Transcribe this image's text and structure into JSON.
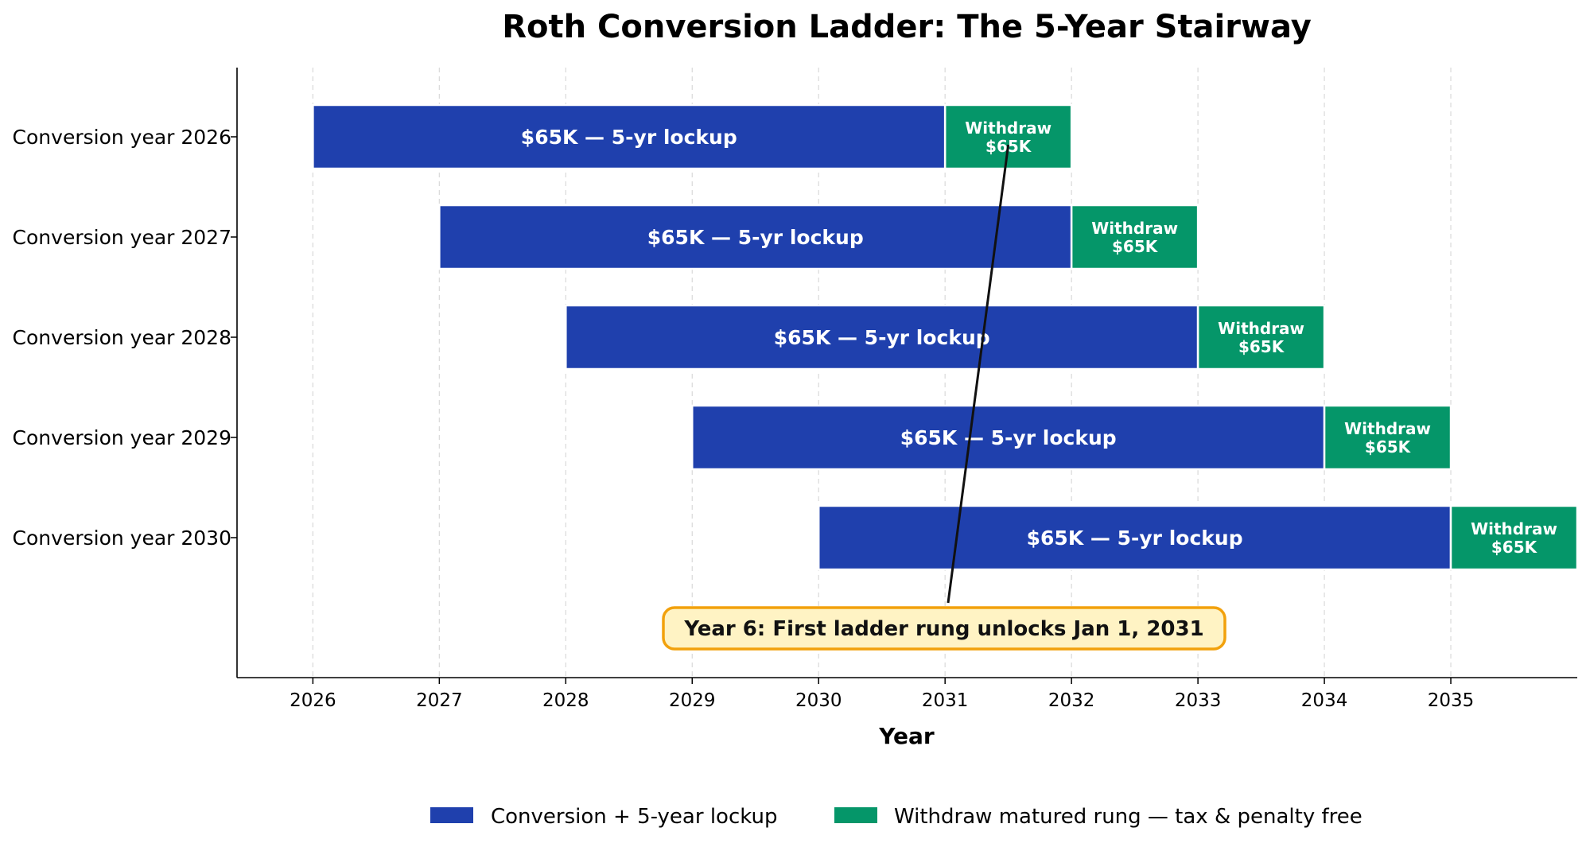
{
  "chart_data": {
    "type": "bar",
    "orientation": "horizontal-gantt",
    "title": "Roth Conversion Ladder: The 5-Year Stairway",
    "xlabel": "Year",
    "ylabel": "",
    "xlim": [
      2025.4,
      2036
    ],
    "x_ticks": [
      "2026",
      "2027",
      "2028",
      "2029",
      "2030",
      "2031",
      "2032",
      "2033",
      "2034",
      "2035"
    ],
    "grid": "vertical dashed",
    "legend_position": "bottom-center",
    "categories": [
      "Conversion year 2026",
      "Conversion year 2027",
      "Conversion year 2028",
      "Conversion year 2029",
      "Conversion year 2030"
    ],
    "series": [
      {
        "name": "Conversion + 5-year lockup",
        "color": "#1f40ad",
        "start": [
          2026,
          2027,
          2028,
          2029,
          2030
        ],
        "end": [
          2031,
          2032,
          2033,
          2034,
          2035
        ],
        "label": "$65K — 5-yr lockup"
      },
      {
        "name": "Withdraw matured rung — tax & penalty free",
        "color": "#059669",
        "start": [
          2031,
          2032,
          2033,
          2034,
          2035
        ],
        "end": [
          2032,
          2033,
          2034,
          2035,
          2036
        ],
        "label_line1": "Withdraw",
        "label_line2": "$65K"
      }
    ],
    "annotation": {
      "text": "Year 6: First ladder rung unlocks Jan 1, 2031",
      "arrow_target_x": 2031.5,
      "arrow_target_category": "Conversion year 2026",
      "box_fill": "#fff3c4",
      "box_stroke": "#f2a10c"
    }
  }
}
